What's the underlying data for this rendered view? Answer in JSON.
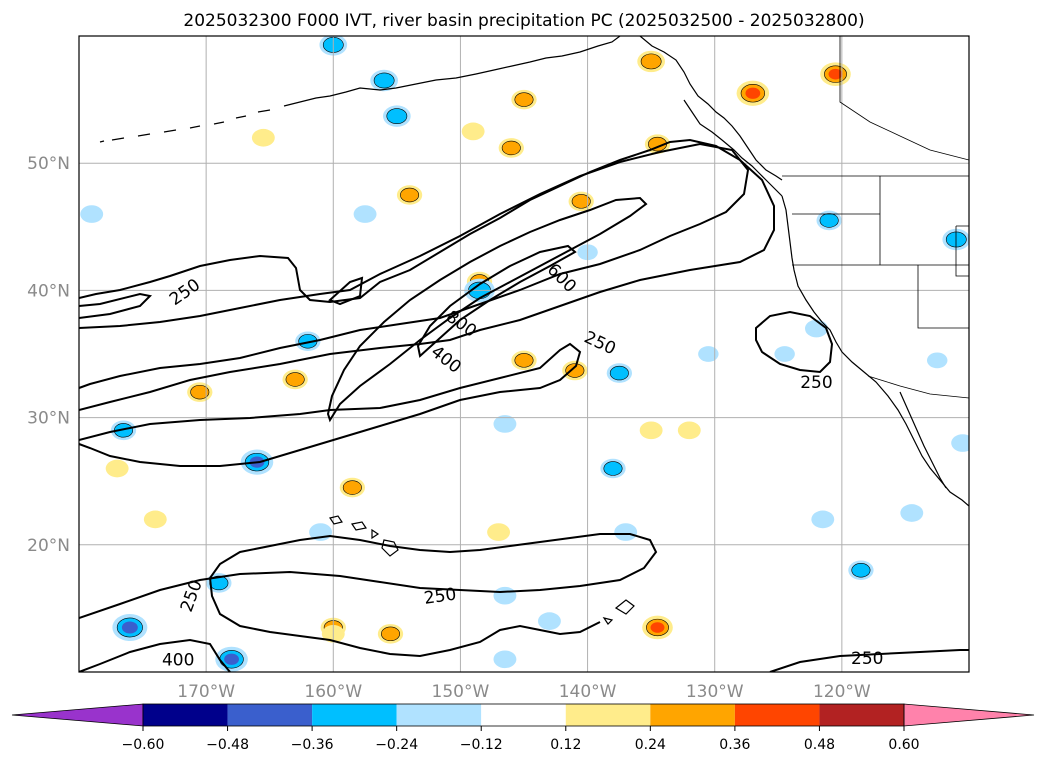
{
  "chart_data": {
    "type": "contour map",
    "title": "2025032300 F000 IVT, river basin precipitation PC (2025032500 - 2025032800)",
    "lon_range": [
      -180,
      -110
    ],
    "lat_range": [
      10,
      60
    ],
    "lon_ticks": [
      {
        "value": -170,
        "label": "170°W"
      },
      {
        "value": -160,
        "label": "160°W"
      },
      {
        "value": -150,
        "label": "150°W"
      },
      {
        "value": -140,
        "label": "140°W"
      },
      {
        "value": -130,
        "label": "130°W"
      },
      {
        "value": -120,
        "label": "120°W"
      }
    ],
    "lat_ticks": [
      {
        "value": 20,
        "label": "20°N"
      },
      {
        "value": 30,
        "label": "30°N"
      },
      {
        "value": 40,
        "label": "40°N"
      },
      {
        "value": 50,
        "label": "50°N"
      }
    ],
    "grid": true,
    "colorbar": {
      "orientation": "horizontal",
      "extend": "both",
      "bounds": [
        -0.72,
        -0.6,
        -0.48,
        -0.36,
        -0.24,
        -0.12,
        0.12,
        0.24,
        0.36,
        0.48,
        0.6,
        0.72
      ],
      "colors": [
        "#9933cc",
        "#00008b",
        "#3a5fcd",
        "#00bfff",
        "#b0e2ff",
        "#ffffff",
        "#ffec8b",
        "#ffa500",
        "#ff4500",
        "#b22222",
        "#ff82ab"
      ],
      "tick_values": [
        -0.6,
        -0.48,
        -0.36,
        -0.24,
        -0.12,
        0.12,
        0.24,
        0.36,
        0.48,
        0.6
      ],
      "tick_labels": [
        "−0.60",
        "−0.48",
        "−0.36",
        "−0.24",
        "−0.12",
        "0.12",
        "0.24",
        "0.36",
        "0.48",
        "0.60"
      ]
    },
    "ivt_contour_levels": [
      250,
      400,
      600,
      800
    ],
    "contour_labels": [
      {
        "text": "250",
        "lon": -171.7,
        "lat": 39.9,
        "angle": 35
      },
      {
        "text": "250",
        "lon": -139.0,
        "lat": 35.9,
        "angle": -25
      },
      {
        "text": "250",
        "lon": -122.0,
        "lat": 32.8,
        "angle": 0
      },
      {
        "text": "250",
        "lon": -151.6,
        "lat": 16.0,
        "angle": 8
      },
      {
        "text": "250",
        "lon": -171.2,
        "lat": 16.0,
        "angle": 70
      },
      {
        "text": "250",
        "lon": -118.0,
        "lat": 11.1,
        "angle": 0
      },
      {
        "text": "400",
        "lon": -151.1,
        "lat": 34.6,
        "angle": -38
      },
      {
        "text": "400",
        "lon": -172.2,
        "lat": 11.0,
        "angle": 0
      },
      {
        "text": "600",
        "lon": -142.0,
        "lat": 41.0,
        "angle": -45
      },
      {
        "text": "800",
        "lon": -149.9,
        "lat": 37.4,
        "angle": -35
      }
    ],
    "precip_pc_patches": [
      {
        "lon": -127.0,
        "lat": 55.5,
        "value": 0.4
      },
      {
        "lon": -135.0,
        "lat": 58.0,
        "value": 0.3
      },
      {
        "lon": -120.5,
        "lat": 57.0,
        "value": 0.36
      },
      {
        "lon": -145.0,
        "lat": 55.0,
        "value": 0.25
      },
      {
        "lon": -146.0,
        "lat": 51.2,
        "value": 0.25
      },
      {
        "lon": -134.5,
        "lat": 51.5,
        "value": 0.25
      },
      {
        "lon": -154.0,
        "lat": 47.5,
        "value": 0.25
      },
      {
        "lon": -140.5,
        "lat": 47.0,
        "value": 0.25
      },
      {
        "lon": -148.5,
        "lat": 40.7,
        "value": 0.25
      },
      {
        "lon": -141.0,
        "lat": 33.7,
        "value": 0.25
      },
      {
        "lon": -145.0,
        "lat": 34.5,
        "value": 0.25
      },
      {
        "lon": -163.0,
        "lat": 33.0,
        "value": 0.25
      },
      {
        "lon": -170.5,
        "lat": 32.0,
        "value": 0.25
      },
      {
        "lon": -158.5,
        "lat": 24.5,
        "value": 0.25
      },
      {
        "lon": -135.0,
        "lat": 29.0,
        "value": 0.2
      },
      {
        "lon": -132.0,
        "lat": 29.0,
        "value": 0.2
      },
      {
        "lon": -177.0,
        "lat": 26.0,
        "value": 0.2
      },
      {
        "lon": -174.0,
        "lat": 22.0,
        "value": 0.2
      },
      {
        "lon": -147.0,
        "lat": 21.0,
        "value": 0.2
      },
      {
        "lon": -160.0,
        "lat": 13.5,
        "value": 0.25
      },
      {
        "lon": -155.5,
        "lat": 13.0,
        "value": 0.25
      },
      {
        "lon": -134.5,
        "lat": 13.5,
        "value": 0.36
      },
      {
        "lon": -165.5,
        "lat": 52.0,
        "value": 0.2
      },
      {
        "lon": -149.0,
        "lat": 52.5,
        "value": 0.2
      },
      {
        "lon": -160.0,
        "lat": 13.0,
        "value": 0.2
      },
      {
        "lon": -160.0,
        "lat": 59.3,
        "value": -0.3
      },
      {
        "lon": -156.0,
        "lat": 56.5,
        "value": -0.3
      },
      {
        "lon": -155.0,
        "lat": 53.7,
        "value": -0.3
      },
      {
        "lon": -148.5,
        "lat": 40.0,
        "value": -0.36
      },
      {
        "lon": -162.0,
        "lat": 36.0,
        "value": -0.25
      },
      {
        "lon": -137.5,
        "lat": 33.5,
        "value": -0.25
      },
      {
        "lon": -166.0,
        "lat": 26.5,
        "value": -0.4
      },
      {
        "lon": -146.5,
        "lat": 29.5,
        "value": -0.2
      },
      {
        "lon": -176.5,
        "lat": 29.0,
        "value": -0.25
      },
      {
        "lon": -138.0,
        "lat": 26.0,
        "value": -0.25
      },
      {
        "lon": -176.0,
        "lat": 13.5,
        "value": -0.45
      },
      {
        "lon": -168.0,
        "lat": 11.0,
        "value": -0.4
      },
      {
        "lon": -169.0,
        "lat": 17.0,
        "value": -0.25
      },
      {
        "lon": -157.5,
        "lat": 46.0,
        "value": -0.2
      },
      {
        "lon": -179.0,
        "lat": 46.0,
        "value": -0.2
      },
      {
        "lon": -137.0,
        "lat": 21.0,
        "value": -0.2
      },
      {
        "lon": -161.0,
        "lat": 21.0,
        "value": -0.2
      },
      {
        "lon": -146.5,
        "lat": 16.0,
        "value": -0.2
      },
      {
        "lon": -143.0,
        "lat": 14.0,
        "value": -0.2
      },
      {
        "lon": -146.5,
        "lat": 11.0,
        "value": -0.2
      },
      {
        "lon": -140.0,
        "lat": 43.0,
        "value": -0.15
      },
      {
        "lon": -121.0,
        "lat": 45.5,
        "value": -0.25
      },
      {
        "lon": -111.0,
        "lat": 44.0,
        "value": -0.3
      },
      {
        "lon": -122.0,
        "lat": 37.0,
        "value": -0.2
      },
      {
        "lon": -121.5,
        "lat": 22.0,
        "value": -0.2
      },
      {
        "lon": -114.5,
        "lat": 22.5,
        "value": -0.2
      },
      {
        "lon": -118.5,
        "lat": 18.0,
        "value": -0.25
      },
      {
        "lon": -112.5,
        "lat": 34.5,
        "value": -0.15
      },
      {
        "lon": -124.5,
        "lat": 35.0,
        "value": -0.15
      },
      {
        "lon": -130.5,
        "lat": 35.0,
        "value": -0.15
      },
      {
        "lon": -110.5,
        "lat": 28.0,
        "value": -0.2
      }
    ]
  }
}
